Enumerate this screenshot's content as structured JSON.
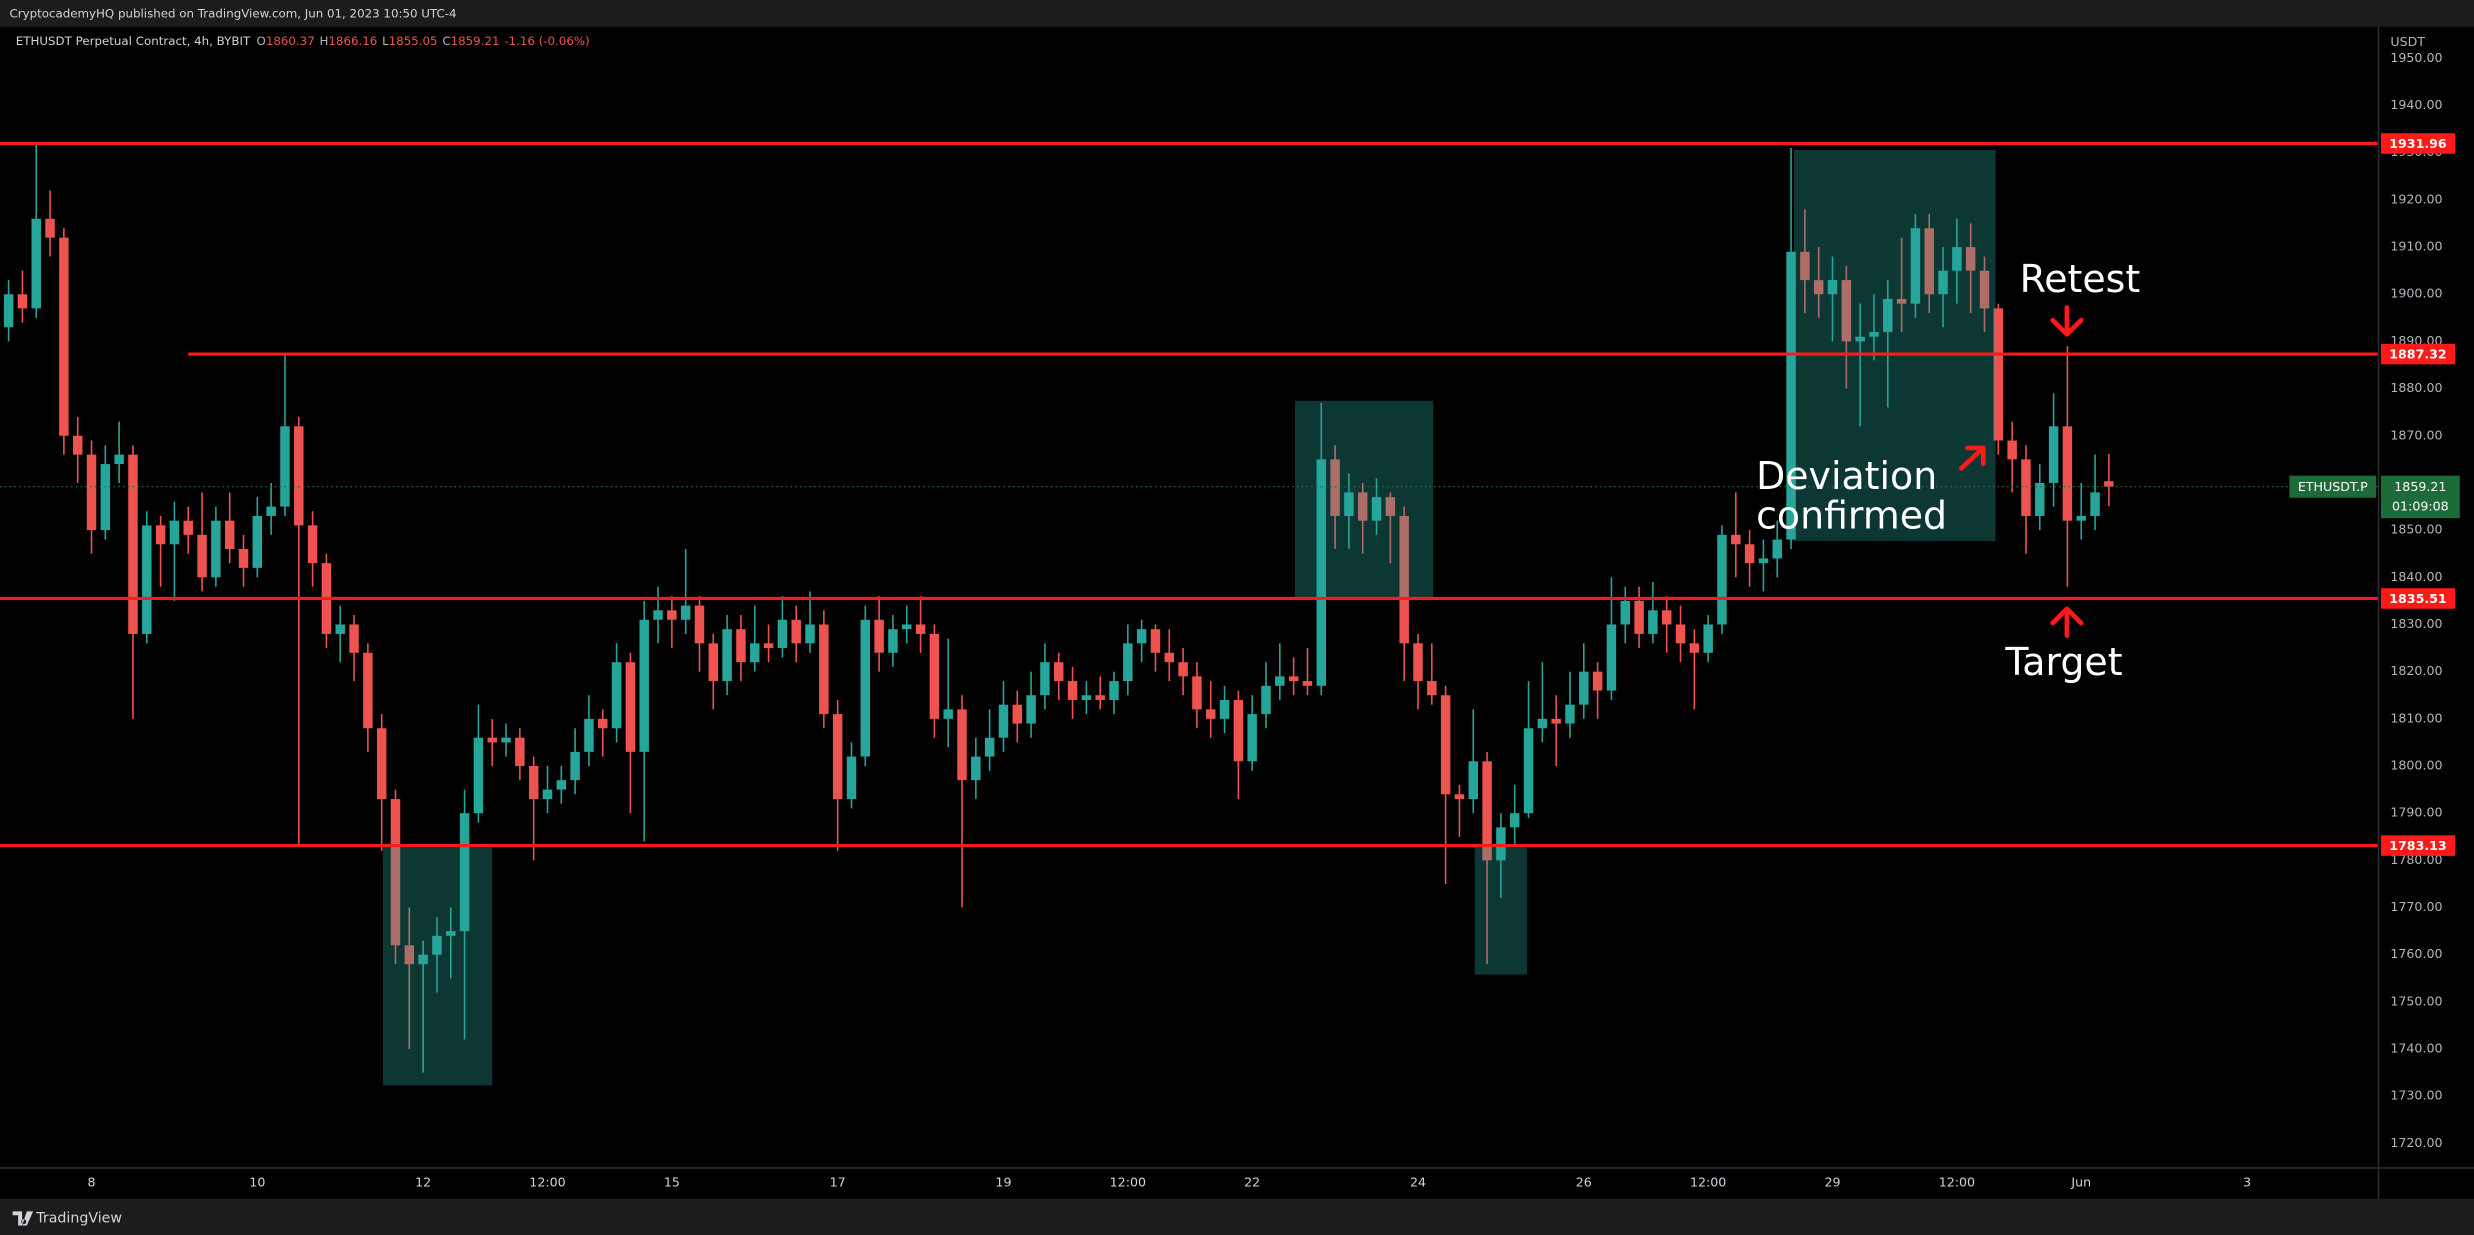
{
  "header": {
    "text": "CryptocademyHQ published on TradingView.com, Jun 01, 2023 10:50 UTC-4"
  },
  "footer": {
    "brand": "TradingView"
  },
  "chart_data": {
    "type": "candlestick",
    "title": "ETHUSDT Perpetual Contract, 4h, BYBIT",
    "ohlc_labels": [
      "O",
      "H",
      "L",
      "C"
    ],
    "change": "-1.16 (-0.06%)",
    "y_unit": "USDT",
    "symbol_label": "ETHUSDT.P",
    "countdown": "01:09:08",
    "annotations": [
      "Retest",
      "Deviation",
      "confirmed",
      "Target"
    ],
    "up_color": "#26a69a",
    "down_color": "#ef5350",
    "line_color": "#ff1a1a",
    "zone_color": "#26a69a",
    "price_color": "#1e6b3a",
    "xlim": [
      -0.623,
      171.46
    ],
    "ylim": [
      1714.96,
      1956.69
    ],
    "xticks": [
      {
        "value": 6,
        "label": "8"
      },
      {
        "value": 18,
        "label": "10"
      },
      {
        "value": 30,
        "label": "12"
      },
      {
        "value": 39,
        "label": "12:00"
      },
      {
        "value": 48,
        "label": "15"
      },
      {
        "value": 60,
        "label": "17"
      },
      {
        "value": 72,
        "label": "19"
      },
      {
        "value": 81,
        "label": "12:00"
      },
      {
        "value": 90,
        "label": "22"
      },
      {
        "value": 102,
        "label": "24"
      },
      {
        "value": 114,
        "label": "26"
      },
      {
        "value": 123,
        "label": "12:00"
      },
      {
        "value": 132,
        "label": "29"
      },
      {
        "value": 141,
        "label": "12:00"
      },
      {
        "value": 150,
        "label": "Jun"
      },
      {
        "value": 162,
        "label": "3"
      }
    ],
    "yticks": [
      {
        "value": 1720,
        "label": "1720.00"
      },
      {
        "value": 1730,
        "label": "1730.00"
      },
      {
        "value": 1740,
        "label": "1740.00"
      },
      {
        "value": 1750,
        "label": "1750.00"
      },
      {
        "value": 1760,
        "label": "1760.00"
      },
      {
        "value": 1770,
        "label": "1770.00"
      },
      {
        "value": 1780,
        "label": "1780.00"
      },
      {
        "value": 1790,
        "label": "1790.00"
      },
      {
        "value": 1800,
        "label": "1800.00"
      },
      {
        "value": 1810,
        "label": "1810.00"
      },
      {
        "value": 1820,
        "label": "1820.00"
      },
      {
        "value": 1830,
        "label": "1830.00"
      },
      {
        "value": 1840,
        "label": "1840.00"
      },
      {
        "value": 1850,
        "label": "1850.00"
      },
      {
        "value": 1860,
        "label": "1860.00"
      },
      {
        "value": 1870,
        "label": "1870.00"
      },
      {
        "value": 1880,
        "label": "1880.00"
      },
      {
        "value": 1890,
        "label": "1890.00"
      },
      {
        "value": 1900,
        "label": "1900.00"
      },
      {
        "value": 1910,
        "label": "1910.00"
      },
      {
        "value": 1920,
        "label": "1920.00"
      },
      {
        "value": 1930,
        "label": "1930.00"
      },
      {
        "value": 1940,
        "label": "1940.00"
      },
      {
        "value": 1950,
        "label": "1950.00"
      }
    ],
    "hlines": [
      {
        "value": 1931.96
      },
      {
        "value": 1887.32,
        "from": 13
      },
      {
        "value": 1835.51
      },
      {
        "value": 1783.13
      }
    ],
    "zones": [
      {
        "x": [
          27.1,
          35
        ],
        "y": [
          1732.3,
          1782.8
        ]
      },
      {
        "x": [
          93.1,
          103.1
        ],
        "y": [
          1835.3,
          1877.4
        ]
      },
      {
        "x": [
          106.1,
          109.9
        ],
        "y": [
          1755.8,
          1782.8
        ]
      },
      {
        "x": [
          129.2,
          143.8
        ],
        "y": [
          1847.7,
          1930.6
        ]
      }
    ],
    "candles": [
      [
        1893,
        1903,
        1890,
        1900
      ],
      [
        1900,
        1905,
        1894,
        1897
      ],
      [
        1897,
        1932,
        1895,
        1916
      ],
      [
        1916,
        1922,
        1908,
        1912
      ],
      [
        1912,
        1914,
        1866,
        1870
      ],
      [
        1870,
        1874,
        1860,
        1866
      ],
      [
        1866,
        1869,
        1845,
        1850
      ],
      [
        1850,
        1868,
        1848,
        1864
      ],
      [
        1864,
        1873,
        1860,
        1866
      ],
      [
        1866,
        1868,
        1810,
        1828
      ],
      [
        1828,
        1854,
        1826,
        1851
      ],
      [
        1851,
        1853,
        1838,
        1847
      ],
      [
        1847,
        1856,
        1835,
        1852
      ],
      [
        1852,
        1855,
        1845,
        1849
      ],
      [
        1849,
        1858,
        1837,
        1840
      ],
      [
        1840,
        1855,
        1838,
        1852
      ],
      [
        1852,
        1858,
        1843,
        1846
      ],
      [
        1846,
        1849,
        1838,
        1842
      ],
      [
        1842,
        1857,
        1840,
        1853
      ],
      [
        1853,
        1860,
        1849,
        1855
      ],
      [
        1855,
        1887,
        1853,
        1872
      ],
      [
        1872,
        1874,
        1783,
        1851
      ],
      [
        1851,
        1854,
        1838,
        1843
      ],
      [
        1843,
        1845,
        1825,
        1828
      ],
      [
        1828,
        1834,
        1822,
        1830
      ],
      [
        1830,
        1832,
        1818,
        1824
      ],
      [
        1824,
        1826,
        1803,
        1808
      ],
      [
        1808,
        1811,
        1782,
        1793
      ],
      [
        1793,
        1795,
        1758,
        1762
      ],
      [
        1762,
        1770,
        1740,
        1758
      ],
      [
        1758,
        1763,
        1735,
        1760
      ],
      [
        1760,
        1768,
        1752,
        1764
      ],
      [
        1764,
        1770,
        1755,
        1765
      ],
      [
        1765,
        1795,
        1742,
        1790
      ],
      [
        1790,
        1813,
        1788,
        1806
      ],
      [
        1806,
        1810,
        1800,
        1805
      ],
      [
        1805,
        1809,
        1802,
        1806
      ],
      [
        1806,
        1808,
        1797,
        1800
      ],
      [
        1800,
        1802,
        1780,
        1793
      ],
      [
        1793,
        1800,
        1790,
        1795
      ],
      [
        1795,
        1800,
        1792,
        1797
      ],
      [
        1797,
        1808,
        1794,
        1803
      ],
      [
        1803,
        1815,
        1800,
        1810
      ],
      [
        1810,
        1812,
        1802,
        1808
      ],
      [
        1808,
        1826,
        1805,
        1822
      ],
      [
        1822,
        1824,
        1790,
        1803
      ],
      [
        1803,
        1835,
        1784,
        1831
      ],
      [
        1831,
        1838,
        1826,
        1833
      ],
      [
        1833,
        1836,
        1825,
        1831
      ],
      [
        1831,
        1846,
        1828,
        1834
      ],
      [
        1834,
        1836,
        1820,
        1826
      ],
      [
        1826,
        1828,
        1812,
        1818
      ],
      [
        1818,
        1832,
        1815,
        1829
      ],
      [
        1829,
        1832,
        1818,
        1822
      ],
      [
        1822,
        1834,
        1820,
        1826
      ],
      [
        1826,
        1830,
        1822,
        1825
      ],
      [
        1825,
        1836,
        1823,
        1831
      ],
      [
        1831,
        1834,
        1822,
        1826
      ],
      [
        1826,
        1837,
        1824,
        1830
      ],
      [
        1830,
        1833,
        1808,
        1811
      ],
      [
        1811,
        1814,
        1782,
        1793
      ],
      [
        1793,
        1805,
        1791,
        1802
      ],
      [
        1802,
        1834,
        1800,
        1831
      ],
      [
        1831,
        1836,
        1820,
        1824
      ],
      [
        1824,
        1832,
        1821,
        1829
      ],
      [
        1829,
        1834,
        1826,
        1830
      ],
      [
        1830,
        1836,
        1824,
        1828
      ],
      [
        1828,
        1830,
        1806,
        1810
      ],
      [
        1810,
        1827,
        1804,
        1812
      ],
      [
        1812,
        1815,
        1770,
        1797
      ],
      [
        1797,
        1806,
        1793,
        1802
      ],
      [
        1802,
        1812,
        1799,
        1806
      ],
      [
        1806,
        1818,
        1803,
        1813
      ],
      [
        1813,
        1816,
        1805,
        1809
      ],
      [
        1809,
        1820,
        1806,
        1815
      ],
      [
        1815,
        1826,
        1812,
        1822
      ],
      [
        1822,
        1824,
        1814,
        1818
      ],
      [
        1818,
        1821,
        1810,
        1814
      ],
      [
        1814,
        1818,
        1811,
        1815
      ],
      [
        1815,
        1819,
        1812,
        1814
      ],
      [
        1814,
        1820,
        1811,
        1818
      ],
      [
        1818,
        1830,
        1815,
        1826
      ],
      [
        1826,
        1831,
        1822,
        1829
      ],
      [
        1829,
        1830,
        1820,
        1824
      ],
      [
        1824,
        1829,
        1818,
        1822
      ],
      [
        1822,
        1825,
        1815,
        1819
      ],
      [
        1819,
        1822,
        1808,
        1812
      ],
      [
        1812,
        1818,
        1806,
        1810
      ],
      [
        1810,
        1817,
        1807,
        1814
      ],
      [
        1814,
        1816,
        1793,
        1801
      ],
      [
        1801,
        1815,
        1799,
        1811
      ],
      [
        1811,
        1822,
        1808,
        1817
      ],
      [
        1817,
        1826,
        1814,
        1819
      ],
      [
        1819,
        1823,
        1815,
        1818
      ],
      [
        1818,
        1825,
        1815,
        1817
      ],
      [
        1817,
        1877,
        1815,
        1865
      ],
      [
        1865,
        1868,
        1846,
        1853
      ],
      [
        1853,
        1862,
        1846,
        1858
      ],
      [
        1858,
        1860,
        1845,
        1852
      ],
      [
        1852,
        1861,
        1849,
        1857
      ],
      [
        1857,
        1858,
        1843,
        1853
      ],
      [
        1853,
        1855,
        1818,
        1826
      ],
      [
        1826,
        1828,
        1812,
        1818
      ],
      [
        1818,
        1826,
        1813,
        1815
      ],
      [
        1815,
        1817,
        1775,
        1794
      ],
      [
        1794,
        1796,
        1785,
        1793
      ],
      [
        1793,
        1812,
        1790,
        1801
      ],
      [
        1801,
        1803,
        1758,
        1780
      ],
      [
        1780,
        1790,
        1772,
        1787
      ],
      [
        1787,
        1796,
        1783,
        1790
      ],
      [
        1790,
        1818,
        1789,
        1808
      ],
      [
        1808,
        1822,
        1805,
        1810
      ],
      [
        1810,
        1815,
        1800,
        1809
      ],
      [
        1809,
        1820,
        1806,
        1813
      ],
      [
        1813,
        1826,
        1810,
        1820
      ],
      [
        1820,
        1822,
        1810,
        1816
      ],
      [
        1816,
        1840,
        1814,
        1830
      ],
      [
        1830,
        1838,
        1826,
        1835
      ],
      [
        1835,
        1838,
        1825,
        1828
      ],
      [
        1828,
        1839,
        1826,
        1833
      ],
      [
        1833,
        1836,
        1824,
        1830
      ],
      [
        1830,
        1834,
        1822,
        1826
      ],
      [
        1826,
        1829,
        1812,
        1824
      ],
      [
        1824,
        1832,
        1822,
        1830
      ],
      [
        1830,
        1851,
        1828,
        1849
      ],
      [
        1849,
        1858,
        1840,
        1847
      ],
      [
        1847,
        1850,
        1838,
        1843
      ],
      [
        1843,
        1848,
        1837,
        1844
      ],
      [
        1844,
        1852,
        1840,
        1848
      ],
      [
        1848,
        1931,
        1846,
        1909
      ],
      [
        1909,
        1918,
        1896,
        1903
      ],
      [
        1903,
        1910,
        1895,
        1900
      ],
      [
        1900,
        1908,
        1890,
        1903
      ],
      [
        1903,
        1906,
        1880,
        1890
      ],
      [
        1890,
        1898,
        1872,
        1891
      ],
      [
        1891,
        1900,
        1886,
        1892
      ],
      [
        1892,
        1903,
        1876,
        1899
      ],
      [
        1899,
        1912,
        1892,
        1898
      ],
      [
        1898,
        1917,
        1895,
        1914
      ],
      [
        1914,
        1917,
        1896,
        1900
      ],
      [
        1900,
        1910,
        1893,
        1905
      ],
      [
        1905,
        1916,
        1898,
        1910
      ],
      [
        1910,
        1915,
        1896,
        1905
      ],
      [
        1905,
        1908,
        1892,
        1897
      ],
      [
        1897,
        1898,
        1866,
        1869
      ],
      [
        1869,
        1873,
        1858,
        1865
      ],
      [
        1865,
        1868,
        1845,
        1853
      ],
      [
        1853,
        1864,
        1850,
        1860
      ],
      [
        1860,
        1879,
        1855,
        1872
      ],
      [
        1872,
        1889,
        1838,
        1852
      ],
      [
        1852,
        1860,
        1848,
        1853
      ],
      [
        1853,
        1866,
        1850,
        1858
      ],
      [
        1860.37,
        1866.16,
        1855.05,
        1859.21
      ]
    ]
  }
}
